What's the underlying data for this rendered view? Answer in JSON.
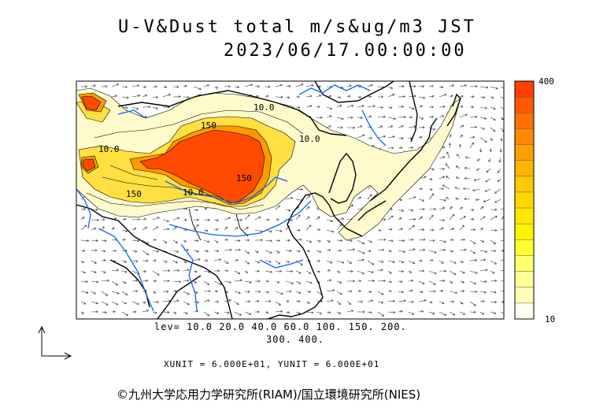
{
  "title": {
    "line1": "U-V&Dust total m/s&ug/m3 JST",
    "line2": "2023/06/17.00:00:00"
  },
  "contour_labels": [
    "10.0",
    "10.0",
    "150",
    "10.0",
    "150",
    "10.0",
    "150"
  ],
  "colorbar": {
    "max_label": "400",
    "min_label": "10",
    "colors": [
      "#ff4000",
      "#ff5a00",
      "#ff7000",
      "#ff8a00",
      "#ffa000",
      "#ffb400",
      "#ffc800",
      "#ffd800",
      "#ffe800",
      "#fff200",
      "#ffff30",
      "#ffff70",
      "#ffff99",
      "#ffffbb",
      "#fffff0"
    ]
  },
  "levels": {
    "line1": "lev= 10.0 20.0 40.0 60.0 100. 150. 200.",
    "line2": "300. 400."
  },
  "units": "XUNIT = 6.000E+01, YUNIT = 6.000E+01",
  "credit": "©九州大学応用力学研究所(RIAM)/国立環境研究所(NIES)",
  "colors": {
    "dust_low": "#fffacc",
    "dust_mid": "#ffe040",
    "dust_high": "#ff6a00",
    "dust_peak": "#ff4a00",
    "coast": "#000000",
    "river": "#1060ff"
  }
}
